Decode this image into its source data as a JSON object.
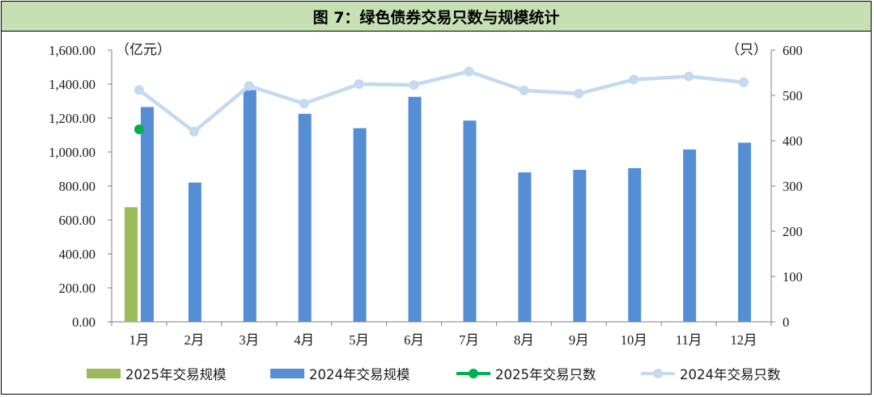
{
  "title": "图 7：绿色债券交易只数与规模统计",
  "chart_data": {
    "type": "bar",
    "categories": [
      "1月",
      "2月",
      "3月",
      "4月",
      "5月",
      "6月",
      "7月",
      "8月",
      "9月",
      "10月",
      "11月",
      "12月"
    ],
    "left_axis": {
      "unit": "（亿元）",
      "ylim": [
        0,
        1600
      ],
      "ticks": [
        "0.00",
        "200.00",
        "400.00",
        "600.00",
        "800.00",
        "1,000.00",
        "1,200.00",
        "1,400.00",
        "1,600.00"
      ],
      "tick_values": [
        0,
        200,
        400,
        600,
        800,
        1000,
        1200,
        1400,
        1600
      ]
    },
    "right_axis": {
      "unit": "（只）",
      "ylim": [
        0,
        600
      ],
      "ticks": [
        "0",
        "100",
        "200",
        "300",
        "400",
        "500",
        "600"
      ],
      "tick_values": [
        0,
        100,
        200,
        300,
        400,
        500,
        600
      ]
    },
    "series": [
      {
        "name": "2025年交易规模",
        "kind": "bar",
        "axis": "left",
        "color": "#9bbb59",
        "values": [
          675,
          null,
          null,
          null,
          null,
          null,
          null,
          null,
          null,
          null,
          null,
          null
        ]
      },
      {
        "name": "2024年交易规模",
        "kind": "bar",
        "axis": "left",
        "color": "#558ed5",
        "values": [
          1265,
          820,
          1365,
          1225,
          1140,
          1325,
          1185,
          880,
          895,
          905,
          1015,
          1055
        ]
      },
      {
        "name": "2025年交易只数",
        "kind": "line",
        "axis": "right",
        "color": "#00b050",
        "values": [
          425,
          null,
          null,
          null,
          null,
          null,
          null,
          null,
          null,
          null,
          null,
          null
        ]
      },
      {
        "name": "2024年交易只数",
        "kind": "line",
        "axis": "right",
        "color": "#c5d9f1",
        "values": [
          512,
          420,
          521,
          482,
          525,
          523,
          553,
          511,
          504,
          535,
          542,
          529
        ]
      }
    ],
    "legend_position": "bottom",
    "grid": false
  }
}
